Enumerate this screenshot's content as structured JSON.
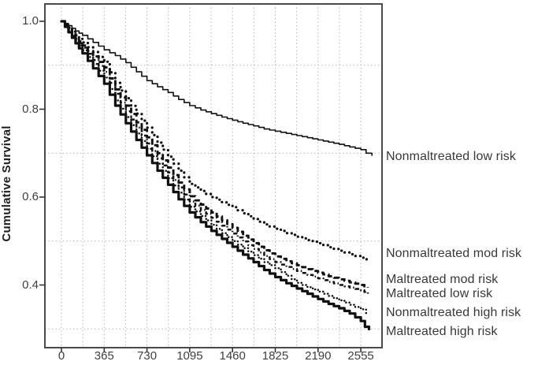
{
  "figure": {
    "background_color": "#ffffff",
    "frame_color": "#4a4a4a",
    "grid_color": "#b5b5b5",
    "curve_color": "#111111",
    "text_color": "#3f3f3f"
  },
  "y_axis": {
    "title": "Cumulative Survival",
    "tick_labels": [
      "1.0",
      "0.8",
      "0.6",
      "0.4"
    ],
    "tick_values": [
      1.0,
      0.8,
      0.6,
      0.4
    ]
  },
  "x_axis": {
    "tick_labels": [
      "0",
      "365",
      "730",
      "1095",
      "1460",
      "1825",
      "2190",
      "2555"
    ],
    "tick_values": [
      0,
      365,
      730,
      1095,
      1460,
      1825,
      2190,
      2555
    ]
  },
  "chart_data": {
    "type": "line",
    "subtype": "kaplan-meier-survival-steps",
    "title": "",
    "xlabel": "",
    "ylabel": "Cumulative Survival",
    "xlim": [
      0,
      2737
    ],
    "ylim": [
      0.26,
      1.04
    ],
    "x_ticks": [
      0,
      365,
      730,
      1095,
      1460,
      1825,
      2190,
      2555
    ],
    "y_ticks": [
      1.0,
      0.8,
      0.6,
      0.4
    ],
    "grid": {
      "on": true,
      "vertical_every_days": 182.5,
      "horizontal_at": [
        0.9,
        0.7,
        0.5,
        0.3
      ]
    },
    "legend_position": "labels-right-of-plot",
    "series": [
      {
        "name": "nonmaltreated-low-risk",
        "label": "Nonmaltreated low risk",
        "line_style": {
          "kind": "solid-thin",
          "width": 1.6,
          "dash": "",
          "cap": "butt"
        },
        "label_anchor_survival": 0.692,
        "points": [
          [
            0,
            1.0
          ],
          [
            60,
            0.99
          ],
          [
            120,
            0.978
          ],
          [
            180,
            0.968
          ],
          [
            270,
            0.952
          ],
          [
            365,
            0.935
          ],
          [
            460,
            0.922
          ],
          [
            550,
            0.906
          ],
          [
            640,
            0.885
          ],
          [
            730,
            0.865
          ],
          [
            820,
            0.851
          ],
          [
            910,
            0.838
          ],
          [
            1000,
            0.822
          ],
          [
            1095,
            0.808
          ],
          [
            1190,
            0.798
          ],
          [
            1280,
            0.79
          ],
          [
            1370,
            0.782
          ],
          [
            1460,
            0.775
          ],
          [
            1550,
            0.768
          ],
          [
            1640,
            0.762
          ],
          [
            1730,
            0.755
          ],
          [
            1825,
            0.75
          ],
          [
            1920,
            0.745
          ],
          [
            2010,
            0.74
          ],
          [
            2100,
            0.735
          ],
          [
            2190,
            0.73
          ],
          [
            2280,
            0.725
          ],
          [
            2370,
            0.72
          ],
          [
            2460,
            0.714
          ],
          [
            2555,
            0.708
          ],
          [
            2600,
            0.7
          ],
          [
            2650,
            0.694
          ]
        ]
      },
      {
        "name": "nonmaltreated-mod-risk",
        "label": "Nonmaltreated mod risk",
        "line_style": {
          "kind": "dotted-bold",
          "width": 3.2,
          "dash": "0.1 6",
          "cap": "round"
        },
        "label_anchor_survival": 0.47,
        "points": [
          [
            0,
            1.0
          ],
          [
            60,
            0.985
          ],
          [
            120,
            0.968
          ],
          [
            180,
            0.952
          ],
          [
            270,
            0.93
          ],
          [
            365,
            0.908
          ],
          [
            460,
            0.86
          ],
          [
            550,
            0.825
          ],
          [
            640,
            0.79
          ],
          [
            730,
            0.758
          ],
          [
            820,
            0.724
          ],
          [
            910,
            0.692
          ],
          [
            1000,
            0.66
          ],
          [
            1095,
            0.63
          ],
          [
            1190,
            0.614
          ],
          [
            1280,
            0.6
          ],
          [
            1370,
            0.588
          ],
          [
            1460,
            0.577
          ],
          [
            1550,
            0.563
          ],
          [
            1640,
            0.55
          ],
          [
            1730,
            0.538
          ],
          [
            1825,
            0.528
          ],
          [
            1920,
            0.518
          ],
          [
            2010,
            0.51
          ],
          [
            2100,
            0.502
          ],
          [
            2190,
            0.495
          ],
          [
            2280,
            0.486
          ],
          [
            2370,
            0.478
          ],
          [
            2460,
            0.47
          ],
          [
            2555,
            0.462
          ],
          [
            2615,
            0.455
          ]
        ]
      },
      {
        "name": "maltreated-mod-risk",
        "label": "Maltreated mod risk",
        "line_style": {
          "kind": "dashed-bold",
          "width": 2.9,
          "dash": "7 4",
          "cap": "butt"
        },
        "label_anchor_survival": 0.412,
        "points": [
          [
            0,
            1.0
          ],
          [
            60,
            0.982
          ],
          [
            120,
            0.963
          ],
          [
            180,
            0.945
          ],
          [
            270,
            0.92
          ],
          [
            365,
            0.895
          ],
          [
            460,
            0.845
          ],
          [
            550,
            0.808
          ],
          [
            640,
            0.77
          ],
          [
            730,
            0.736
          ],
          [
            820,
            0.7
          ],
          [
            910,
            0.667
          ],
          [
            1000,
            0.633
          ],
          [
            1095,
            0.602
          ],
          [
            1190,
            0.583
          ],
          [
            1280,
            0.565
          ],
          [
            1370,
            0.547
          ],
          [
            1460,
            0.53
          ],
          [
            1550,
            0.512
          ],
          [
            1640,
            0.495
          ],
          [
            1730,
            0.479
          ],
          [
            1825,
            0.465
          ],
          [
            1920,
            0.454
          ],
          [
            2010,
            0.445
          ],
          [
            2100,
            0.436
          ],
          [
            2190,
            0.428
          ],
          [
            2280,
            0.42
          ],
          [
            2370,
            0.413
          ],
          [
            2460,
            0.406
          ],
          [
            2555,
            0.4
          ],
          [
            2615,
            0.394
          ]
        ]
      },
      {
        "name": "maltreated-low-risk",
        "label": "Maltreated low risk",
        "line_style": {
          "kind": "dash-dot",
          "width": 2.5,
          "dash": "5 3 1.5 3",
          "cap": "butt"
        },
        "label_anchor_survival": 0.38,
        "points": [
          [
            0,
            1.0
          ],
          [
            60,
            0.98
          ],
          [
            120,
            0.96
          ],
          [
            180,
            0.94
          ],
          [
            270,
            0.912
          ],
          [
            365,
            0.885
          ],
          [
            460,
            0.835
          ],
          [
            550,
            0.795
          ],
          [
            640,
            0.758
          ],
          [
            730,
            0.722
          ],
          [
            820,
            0.688
          ],
          [
            910,
            0.656
          ],
          [
            1000,
            0.622
          ],
          [
            1095,
            0.59
          ],
          [
            1190,
            0.571
          ],
          [
            1280,
            0.553
          ],
          [
            1370,
            0.535
          ],
          [
            1460,
            0.517
          ],
          [
            1550,
            0.499
          ],
          [
            1640,
            0.482
          ],
          [
            1730,
            0.466
          ],
          [
            1825,
            0.452
          ],
          [
            1920,
            0.441
          ],
          [
            2010,
            0.432
          ],
          [
            2100,
            0.423
          ],
          [
            2190,
            0.415
          ],
          [
            2280,
            0.407
          ],
          [
            2370,
            0.4
          ],
          [
            2460,
            0.394
          ],
          [
            2555,
            0.388
          ],
          [
            2615,
            0.38
          ]
        ]
      },
      {
        "name": "nonmaltreated-high-risk",
        "label": "Nonmaltreated high risk",
        "line_style": {
          "kind": "dotted-fine",
          "width": 2.5,
          "dash": "0.1 4.2",
          "cap": "round"
        },
        "label_anchor_survival": 0.336,
        "points": [
          [
            0,
            1.0
          ],
          [
            60,
            0.978
          ],
          [
            120,
            0.956
          ],
          [
            180,
            0.934
          ],
          [
            270,
            0.903
          ],
          [
            365,
            0.872
          ],
          [
            460,
            0.82
          ],
          [
            550,
            0.782
          ],
          [
            640,
            0.745
          ],
          [
            730,
            0.71
          ],
          [
            820,
            0.676
          ],
          [
            910,
            0.643
          ],
          [
            1000,
            0.61
          ],
          [
            1095,
            0.578
          ],
          [
            1190,
            0.557
          ],
          [
            1280,
            0.537
          ],
          [
            1370,
            0.518
          ],
          [
            1460,
            0.5
          ],
          [
            1550,
            0.484
          ],
          [
            1640,
            0.468
          ],
          [
            1730,
            0.452
          ],
          [
            1825,
            0.438
          ],
          [
            1920,
            0.421
          ],
          [
            2010,
            0.405
          ],
          [
            2100,
            0.395
          ],
          [
            2190,
            0.385
          ],
          [
            2280,
            0.375
          ],
          [
            2370,
            0.365
          ],
          [
            2460,
            0.355
          ],
          [
            2555,
            0.345
          ],
          [
            2600,
            0.336
          ]
        ]
      },
      {
        "name": "maltreated-high-risk",
        "label": "Maltreated high risk",
        "line_style": {
          "kind": "solid-thick",
          "width": 3.2,
          "dash": "",
          "cap": "butt"
        },
        "label_anchor_survival": 0.294,
        "points": [
          [
            0,
            1.0
          ],
          [
            60,
            0.975
          ],
          [
            120,
            0.95
          ],
          [
            180,
            0.927
          ],
          [
            270,
            0.893
          ],
          [
            365,
            0.858
          ],
          [
            460,
            0.808
          ],
          [
            550,
            0.768
          ],
          [
            640,
            0.73
          ],
          [
            730,
            0.695
          ],
          [
            820,
            0.66
          ],
          [
            910,
            0.628
          ],
          [
            1000,
            0.595
          ],
          [
            1095,
            0.565
          ],
          [
            1190,
            0.543
          ],
          [
            1280,
            0.523
          ],
          [
            1370,
            0.505
          ],
          [
            1460,
            0.487
          ],
          [
            1550,
            0.469
          ],
          [
            1640,
            0.452
          ],
          [
            1730,
            0.434
          ],
          [
            1825,
            0.418
          ],
          [
            1920,
            0.404
          ],
          [
            2010,
            0.392
          ],
          [
            2100,
            0.38
          ],
          [
            2190,
            0.368
          ],
          [
            2280,
            0.357
          ],
          [
            2370,
            0.347
          ],
          [
            2460,
            0.335
          ],
          [
            2555,
            0.318
          ],
          [
            2590,
            0.305
          ],
          [
            2625,
            0.297
          ]
        ]
      }
    ]
  }
}
